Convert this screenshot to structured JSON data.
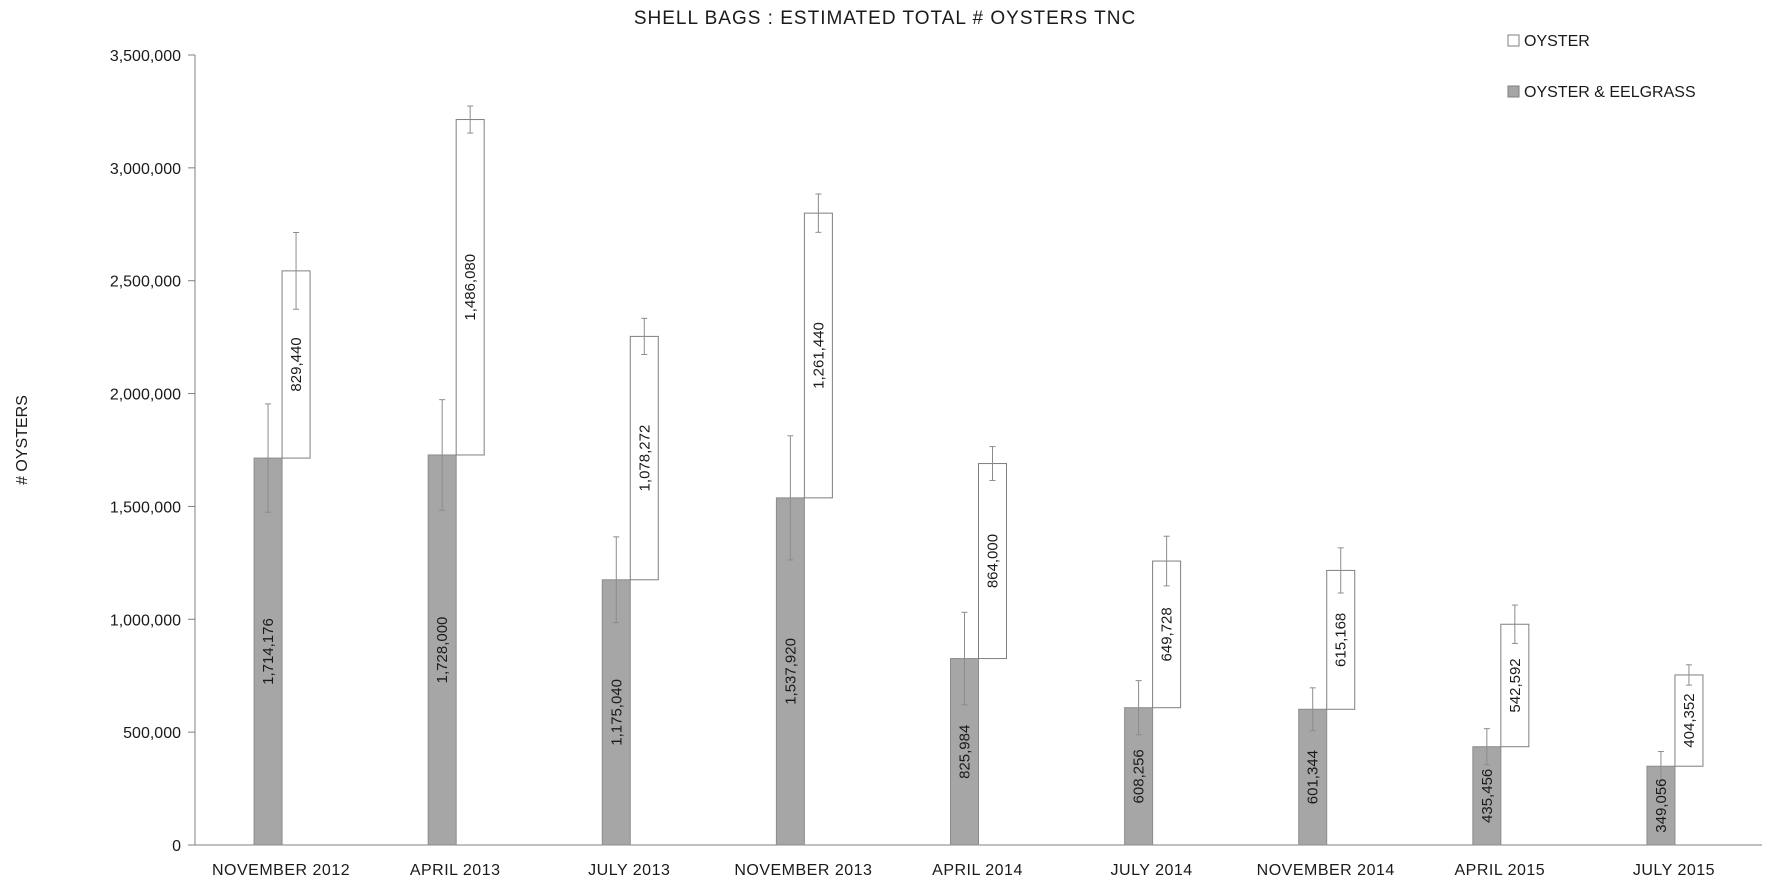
{
  "chart_data": {
    "type": "bar",
    "stacked": true,
    "title": "SHELL BAGS : ESTIMATED TOTAL # OYSTERS TNC",
    "xlabel": "",
    "ylabel": "# OYSTERS",
    "ylim": [
      0,
      3500000
    ],
    "yticks": [
      0,
      500000,
      1000000,
      1500000,
      2000000,
      2500000,
      3000000,
      3500000
    ],
    "ytick_labels": [
      "0",
      "500,000",
      "1,000,000",
      "1,500,000",
      "2,000,000",
      "2,500,000",
      "3,000,000",
      "3,500,000"
    ],
    "grid": false,
    "legend_position": "top-right",
    "categories": [
      "NOVEMBER 2012",
      "APRIL  2013",
      "JULY 2013",
      "NOVEMBER 2013",
      "APRIL 2014",
      "JULY 2014",
      "NOVEMBER 2014",
      "APRIL 2015",
      "JULY 2015"
    ],
    "series": [
      {
        "name": "OYSTER & EELGRASS",
        "color": "#a6a6a6",
        "values": [
          1714176,
          1728000,
          1175040,
          1537920,
          825984,
          608256,
          601344,
          435456,
          349056
        ],
        "labels": [
          "1,714,176",
          "1,728,000",
          "1,175,040",
          "1,537,920",
          "825,984",
          "608,256",
          "601,344",
          "435,456",
          "349,056"
        ],
        "error": [
          240000,
          245000,
          190000,
          275000,
          205000,
          120000,
          95000,
          80000,
          65000
        ]
      },
      {
        "name": "OYSTER",
        "color": "#ffffff",
        "values": [
          829440,
          1486080,
          1078272,
          1261440,
          864000,
          649728,
          615168,
          542592,
          404352
        ],
        "labels": [
          "829,440",
          "1,486,080",
          "1,078,272",
          "1,261,440",
          "864,000",
          "649,728",
          "615,168",
          "542,592",
          "404,352"
        ],
        "error": [
          170000,
          60000,
          80000,
          85000,
          75000,
          110000,
          100000,
          85000,
          45000
        ]
      }
    ]
  }
}
